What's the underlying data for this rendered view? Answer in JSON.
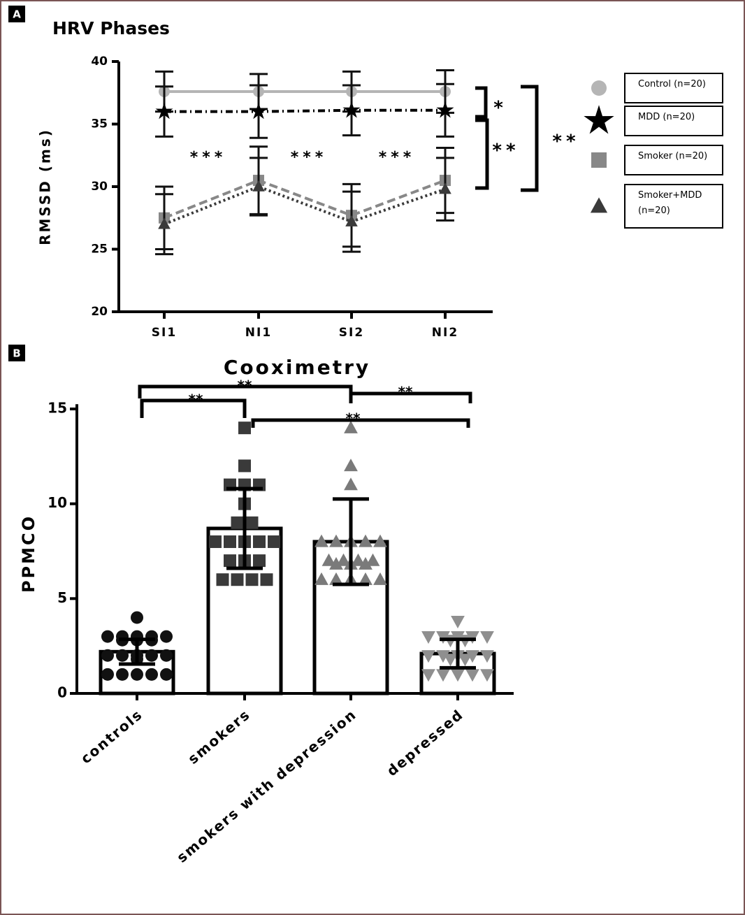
{
  "chart_data": [
    {
      "type": "line",
      "panel": "A",
      "title": "HRV Phases",
      "y_label": "RMSSD (ms)",
      "categories": [
        "SI1",
        "NI1",
        "SI2",
        "NI2"
      ],
      "ylim": [
        20,
        40
      ],
      "yticks": [
        20,
        25,
        30,
        35,
        40
      ],
      "series": [
        {
          "name": "Control (n=20)",
          "color": "#b5b5b5",
          "marker": "circle",
          "line_style": "solid",
          "values": [
            37.6,
            37.6,
            37.6,
            37.6
          ],
          "errors": [
            1.6,
            1.4,
            1.6,
            1.7
          ]
        },
        {
          "name": "MDD (n=20)",
          "color": "#000000",
          "marker": "star",
          "line_style": "dashdot",
          "values": [
            36,
            36,
            36.1,
            36.1
          ],
          "errors": [
            2.0,
            2.1,
            2.0,
            2.1
          ]
        },
        {
          "name": "Smoker (n=20)",
          "color": "#888888",
          "marker": "square",
          "line_style": "dashed",
          "values": [
            27.5,
            30.5,
            27.7,
            30.5
          ],
          "errors": [
            2.5,
            2.7,
            2.5,
            2.6
          ]
        },
        {
          "name": "Smoker+MDD (n=20)",
          "color": "#3a3a3a",
          "marker": "triangle",
          "line_style": "dotted",
          "values": [
            27,
            30,
            27.2,
            29.8
          ],
          "errors": [
            2.4,
            2.3,
            2.4,
            2.5
          ]
        }
      ],
      "annotations": [
        "***",
        "***",
        "***",
        "*",
        "**",
        "**"
      ]
    },
    {
      "type": "bar",
      "panel": "B",
      "title": "Cooximetry",
      "y_label": "PPMCO",
      "categories": [
        "controls",
        "smokers",
        "smokers with depression",
        "depressed"
      ],
      "values": [
        2.2,
        8.7,
        8.0,
        2.1
      ],
      "errors": [
        0.65,
        2.1,
        2.25,
        0.75
      ],
      "ylim": [
        0,
        15.25
      ],
      "yticks": [
        0,
        5,
        10,
        15
      ],
      "markers": [
        "circle",
        "square",
        "triangle",
        "down-triangle"
      ],
      "colors": [
        "#111111",
        "#3a3a3a",
        "#7a7a7a",
        "#8f8f8f"
      ],
      "points": [
        [
          4,
          3,
          3,
          3,
          3,
          3,
          2,
          2,
          2,
          2,
          2,
          2,
          2,
          2,
          1,
          1,
          1,
          1,
          1,
          1
        ],
        [
          14,
          12,
          11,
          11,
          11,
          10,
          9,
          9,
          8,
          8,
          8,
          8,
          8,
          7,
          7,
          7,
          6,
          6,
          6,
          6
        ],
        [
          14,
          12,
          11,
          8,
          8,
          8,
          8,
          8,
          7,
          7,
          7,
          7,
          6,
          6,
          6,
          6,
          6,
          6,
          6,
          6
        ],
        [
          3,
          3,
          3,
          3,
          3,
          3,
          2,
          2,
          2,
          2,
          2,
          2,
          2,
          1,
          1,
          1,
          1,
          1,
          1,
          1
        ]
      ],
      "annotations": [
        "**",
        "**",
        "**",
        "**"
      ]
    }
  ]
}
